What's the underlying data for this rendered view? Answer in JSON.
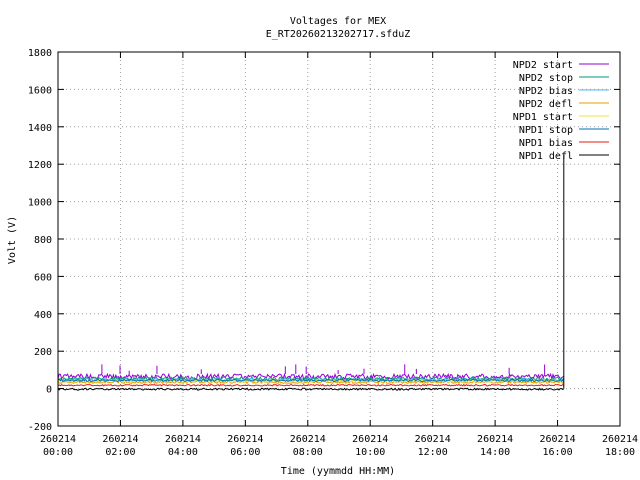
{
  "chart_data": {
    "type": "line",
    "title": "Voltages for MEX",
    "subtitle": "E_RT20260213202717.sfduZ",
    "xlabel": "Time (yymmdd HH:MM)",
    "ylabel": "Volt (V)",
    "ylim": [
      -200,
      1800
    ],
    "yticks": [
      -200,
      0,
      200,
      400,
      600,
      800,
      1000,
      1200,
      1400,
      1600,
      1800
    ],
    "xlim_hours": [
      0,
      18
    ],
    "xticks": [
      {
        "hour": 0,
        "date": "260214",
        "time": "00:00"
      },
      {
        "hour": 2,
        "date": "260214",
        "time": "02:00"
      },
      {
        "hour": 4,
        "date": "260214",
        "time": "04:00"
      },
      {
        "hour": 6,
        "date": "260214",
        "time": "06:00"
      },
      {
        "hour": 8,
        "date": "260214",
        "time": "08:00"
      },
      {
        "hour": 10,
        "date": "260214",
        "time": "10:00"
      },
      {
        "hour": 12,
        "date": "260214",
        "time": "12:00"
      },
      {
        "hour": 14,
        "date": "260214",
        "time": "14:00"
      },
      {
        "hour": 16,
        "date": "260214",
        "time": "16:00"
      },
      {
        "hour": 18,
        "date": "260214",
        "time": "18:00"
      }
    ],
    "grid": true,
    "legend_position": "top-right",
    "series": [
      {
        "name": "NPD2 start",
        "color": "#9400d3",
        "band": [
          50,
          78
        ]
      },
      {
        "name": "NPD2 stop",
        "color": "#009e73",
        "band": [
          44,
          62
        ]
      },
      {
        "name": "NPD2 bias",
        "color": "#56b4e9",
        "band": [
          40,
          55
        ]
      },
      {
        "name": "NPD2 defl",
        "color": "#e69f00",
        "band": [
          28,
          40
        ]
      },
      {
        "name": "NPD1 start",
        "color": "#f0e442",
        "band": [
          34,
          48
        ]
      },
      {
        "name": "NPD1 stop",
        "color": "#0072b2",
        "band": [
          38,
          50
        ]
      },
      {
        "name": "NPD1 bias",
        "color": "#e51e10",
        "band": [
          14,
          22
        ]
      },
      {
        "name": "NPD1 defl",
        "color": "#000000",
        "band": [
          -8,
          2
        ]
      }
    ],
    "data_range_hours": [
      0,
      16.2
    ],
    "notable": {
      "NPD1 defl spike": {
        "hour": 16.2,
        "value": 1250
      }
    }
  }
}
